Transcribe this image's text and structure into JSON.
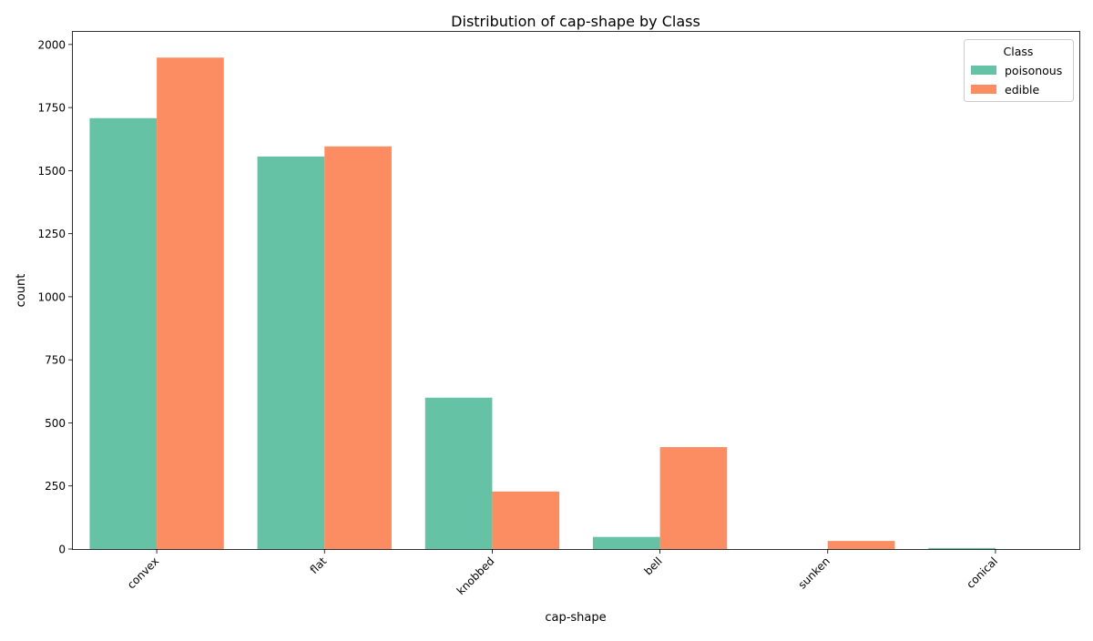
{
  "chart_data": {
    "type": "bar",
    "title": "Distribution of cap-shape by Class",
    "xlabel": "cap-shape",
    "ylabel": "count",
    "categories": [
      "convex",
      "flat",
      "knobbed",
      "bell",
      "sunken",
      "conical"
    ],
    "series": [
      {
        "name": "poisonous",
        "color": "#66c2a5",
        "values": [
          1708,
          1556,
          600,
          48,
          0,
          4
        ]
      },
      {
        "name": "edible",
        "color": "#fc8d62",
        "values": [
          1948,
          1596,
          228,
          404,
          32,
          0
        ]
      }
    ],
    "ylim": [
      0,
      2050
    ],
    "yticks": [
      0,
      250,
      500,
      750,
      1000,
      1250,
      1500,
      1750,
      2000
    ],
    "ytick_labels": [
      "0",
      "250",
      "500",
      "750",
      "1000",
      "1250",
      "1500",
      "1750",
      "2000"
    ],
    "legend": {
      "title": "Class",
      "placement": "top-right"
    },
    "grid": false
  }
}
